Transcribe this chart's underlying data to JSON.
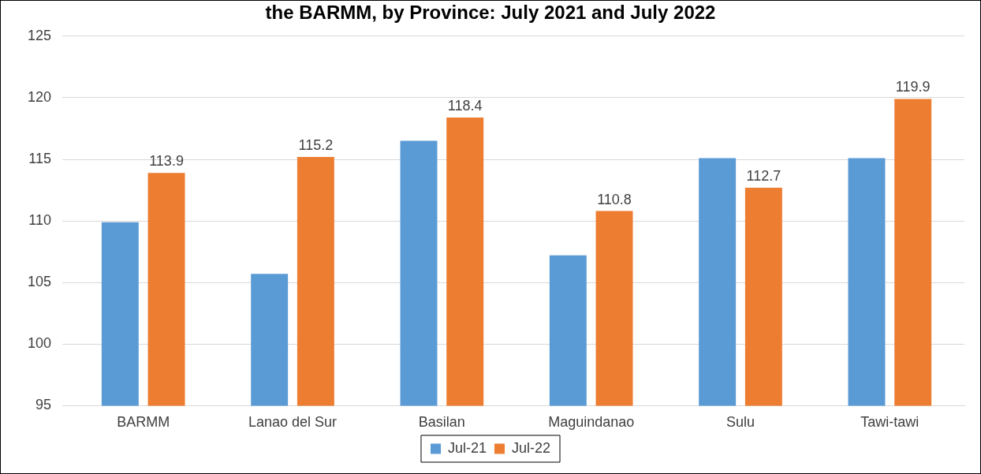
{
  "chart_data": {
    "type": "bar",
    "title": "the BARMM, by Province: July 2021 and July 2022",
    "categories": [
      "BARMM",
      "Lanao del Sur",
      "Basilan",
      "Maguindanao",
      "Sulu",
      "Tawi-tawi"
    ],
    "series": [
      {
        "name": "Jul-21",
        "color": "#5b9bd5",
        "values": [
          109.9,
          105.7,
          116.5,
          107.2,
          115.1,
          115.1
        ]
      },
      {
        "name": "Jul-22",
        "color": "#ed7d31",
        "values": [
          113.9,
          115.2,
          118.4,
          110.8,
          112.7,
          119.9
        ],
        "value_labels": [
          "113.9",
          "115.2",
          "118.4",
          "110.8",
          "112.7",
          "119.9"
        ]
      }
    ],
    "ylim": [
      95,
      125
    ],
    "yticks": [
      95,
      100,
      105,
      110,
      115,
      120,
      125
    ],
    "grid": "y",
    "legend": "bottom"
  }
}
